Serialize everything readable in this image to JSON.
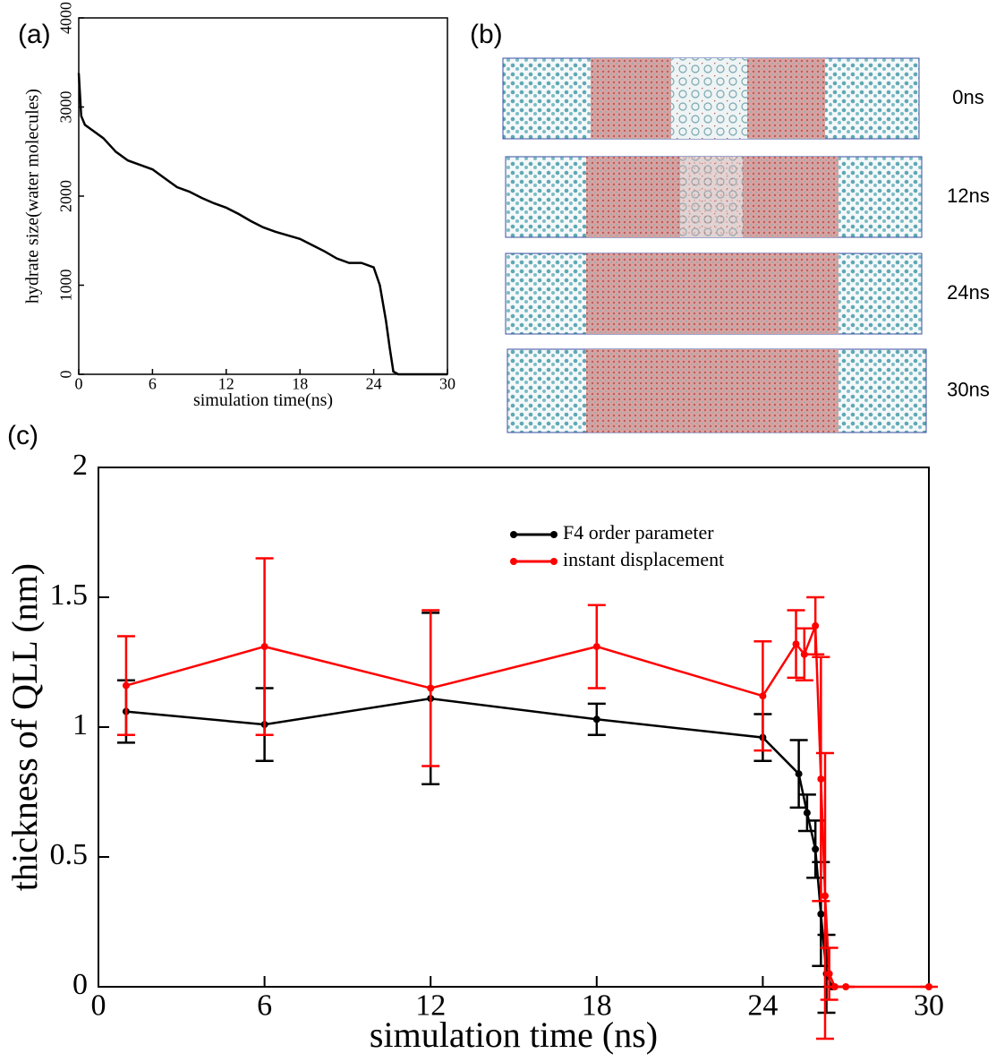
{
  "panels": {
    "labels": [
      "(a)",
      "(b)",
      "(c)"
    ],
    "snapshots": [
      "0ns",
      "12ns",
      "24ns",
      "30ns"
    ]
  },
  "chart_data": [
    {
      "type": "line",
      "x_label": "simulation time(ns)",
      "y_label": "hydrate size(water molecules)",
      "xlim": [
        0,
        30
      ],
      "xticks": [
        0,
        6,
        12,
        18,
        24,
        30
      ],
      "ylim": [
        0,
        4000
      ],
      "yticks": [
        0,
        1000,
        2000,
        3000,
        4000
      ],
      "series": [
        {
          "color": "#000000",
          "x": [
            0,
            0.2,
            0.5,
            1,
            2,
            3,
            4,
            5,
            6,
            7,
            8,
            9,
            10,
            11,
            12,
            13,
            14,
            15,
            16,
            17,
            18,
            19,
            20,
            21,
            22,
            23,
            24,
            24.5,
            25,
            25.3,
            25.6,
            26,
            28,
            30
          ],
          "values": [
            3380,
            2900,
            2800,
            2750,
            2650,
            2500,
            2400,
            2350,
            2300,
            2200,
            2100,
            2050,
            1980,
            1920,
            1870,
            1800,
            1720,
            1650,
            1600,
            1560,
            1520,
            1450,
            1380,
            1300,
            1250,
            1250,
            1200,
            1000,
            600,
            300,
            30,
            0,
            0,
            0
          ]
        }
      ]
    },
    {
      "type": "line",
      "markers": true,
      "legend": "upper right",
      "x_label": "simulation time (ns)",
      "y_label": "thickness of QLL (nm)",
      "xlim": [
        0,
        30
      ],
      "xticks": [
        0,
        6,
        12,
        18,
        24,
        30
      ],
      "ylim": [
        0,
        2
      ],
      "yticks": [
        0,
        0.5,
        1,
        1.5,
        2
      ],
      "series": [
        {
          "name": "F4 order parameter",
          "color": "#000000",
          "x": [
            1,
            6,
            12,
            18,
            24,
            25.3,
            25.6,
            25.9,
            26.1,
            26.3,
            26.5
          ],
          "values": [
            1.06,
            1.01,
            1.11,
            1.03,
            0.96,
            0.82,
            0.67,
            0.53,
            0.28,
            0.05,
            0
          ],
          "errors": [
            0.12,
            0.14,
            0.33,
            0.06,
            0.09,
            0.13,
            0.07,
            0.11,
            0.2,
            0.15,
            0
          ]
        },
        {
          "name": "instant displacement",
          "color": "#ff0000",
          "x": [
            1,
            6,
            12,
            18,
            24,
            25.2,
            25.5,
            25.9,
            26.1,
            26.25,
            26.4,
            26.6,
            27,
            30
          ],
          "values": [
            1.16,
            1.31,
            1.15,
            1.31,
            1.12,
            1.32,
            1.28,
            1.39,
            0.8,
            0.35,
            0.05,
            0,
            0,
            0
          ],
          "errors": [
            0.19,
            0.34,
            0.3,
            0.16,
            0.21,
            0.13,
            0.1,
            0.11,
            0.47,
            0.55,
            0.1,
            0,
            0,
            0
          ]
        }
      ]
    }
  ]
}
